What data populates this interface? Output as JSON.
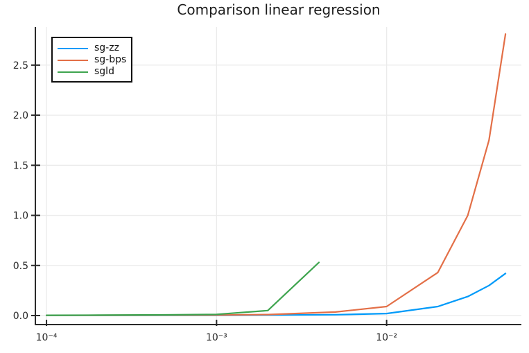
{
  "chart_data": {
    "type": "line",
    "title": "Comparison linear regression",
    "xlabel": "",
    "ylabel": "",
    "x_scale": "log",
    "xlim": [
      8.6e-05,
      0.062
    ],
    "ylim": [
      -0.09,
      2.88
    ],
    "grid": true,
    "legend_position": "top-left",
    "x_ticks": {
      "values": [
        0.0001,
        0.001,
        0.01
      ],
      "labels": [
        "10⁻⁴",
        "10⁻³",
        "10⁻²"
      ]
    },
    "y_ticks": {
      "values": [
        0.0,
        0.5,
        1.0,
        1.5,
        2.0,
        2.5
      ],
      "labels": [
        "0.0",
        "0.5",
        "1.0",
        "1.5",
        "2.0",
        "2.5"
      ]
    },
    "series": [
      {
        "name": "sg-zz",
        "color": "#009af9",
        "x": [
          0.0001,
          0.0002,
          0.0005,
          0.001,
          0.002,
          0.005,
          0.01,
          0.02,
          0.03,
          0.04,
          0.05
        ],
        "y": [
          0.002,
          0.002,
          0.003,
          0.003,
          0.005,
          0.008,
          0.02,
          0.09,
          0.19,
          0.3,
          0.42
        ]
      },
      {
        "name": "sg-bps",
        "color": "#e36f47",
        "x": [
          0.0001,
          0.0002,
          0.0005,
          0.001,
          0.002,
          0.005,
          0.01,
          0.02,
          0.03,
          0.04,
          0.05
        ],
        "y": [
          0.002,
          0.003,
          0.004,
          0.005,
          0.01,
          0.035,
          0.09,
          0.43,
          1.0,
          1.75,
          2.81
        ]
      },
      {
        "name": "sgld",
        "color": "#3ea44e",
        "x": [
          0.0001,
          0.0002,
          0.0005,
          0.001,
          0.002,
          0.004
        ],
        "y": [
          0.003,
          0.004,
          0.007,
          0.012,
          0.05,
          0.53
        ]
      }
    ],
    "colors": {
      "grid": "#ebebeb",
      "spine": "#2a2a2a",
      "tick_label": "#262626",
      "background": "#ffffff"
    }
  }
}
